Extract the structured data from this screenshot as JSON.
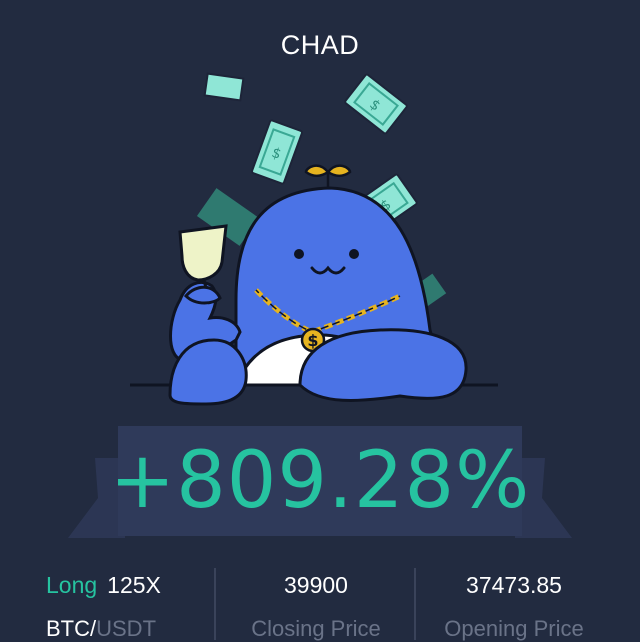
{
  "header": {
    "title": "CHAD"
  },
  "result": {
    "pnl_percent": "+809.28%"
  },
  "position": {
    "side": "Long",
    "leverage": "125X",
    "pair_base": "BTC",
    "pair_separator": "/",
    "pair_quote": "USDT"
  },
  "prices": {
    "closing_price": "39900",
    "closing_label": "Closing Price",
    "opening_price": "37473.85",
    "opening_label": "Opening Price"
  },
  "colors": {
    "background": "#222b40",
    "profit_green": "#26c3a0",
    "mascot_blue": "#4b73e6",
    "muted_text": "#6a7388",
    "banknote": "#8fe6d6",
    "gold_chain": "#e6b420"
  },
  "icons": [
    "mascot-illustration",
    "banknote-icon",
    "gold-chain-icon",
    "champagne-glass-icon"
  ]
}
